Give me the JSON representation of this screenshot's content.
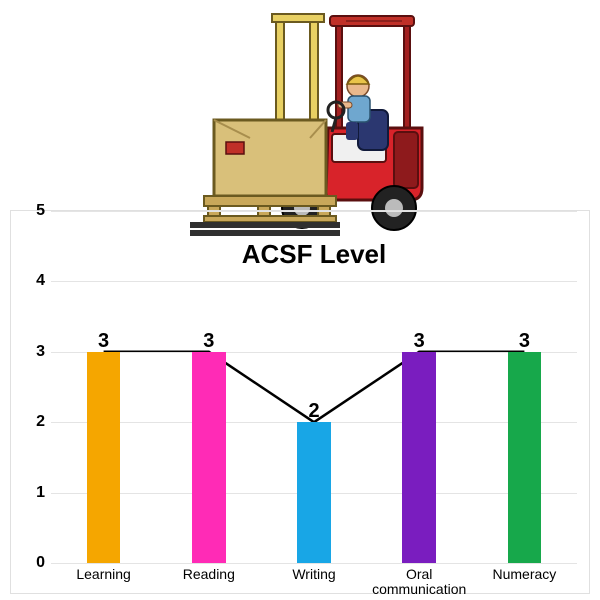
{
  "illustration": {
    "name": "forklift-with-operator",
    "body_color": "#d8232a",
    "body_dark": "#8e1a1c",
    "mast_color": "#e8d063",
    "box_color": "#d9c07a",
    "box_shadow": "#a88e4d",
    "fork_color": "#303030",
    "wheel_color": "#222222",
    "hub_color": "#bbbbbb",
    "operator_shirt": "#6fa7cf",
    "operator_skin": "#e9b88c",
    "operator_hat": "#e9c44a",
    "seat_color": "#2b3770",
    "accent_panel": "#c03028"
  },
  "chart": {
    "type": "bar+line",
    "title": "ACSF Level",
    "title_fontsize": 26,
    "title_top_ratio": 0.08,
    "background_color": "#ffffff",
    "grid_color": "#e4e4e4",
    "border_color": "#e0e0e0",
    "ylim": [
      0,
      5
    ],
    "ytick_step": 1,
    "ytick_fontsize": 16,
    "xlabel_fontsize": 14,
    "datalabel_fontsize": 20,
    "bar_width_ratio": 0.32,
    "line_color": "#000000",
    "line_width": 2.5,
    "categories": [
      "Learning",
      "Reading",
      "Writing",
      "Oral\ncommunication",
      "Numeracy"
    ],
    "values": [
      3,
      3,
      2,
      3,
      3
    ],
    "bar_colors": [
      "#f5a600",
      "#ff2bb6",
      "#18a6e6",
      "#7a1dbf",
      "#17a84b"
    ]
  }
}
